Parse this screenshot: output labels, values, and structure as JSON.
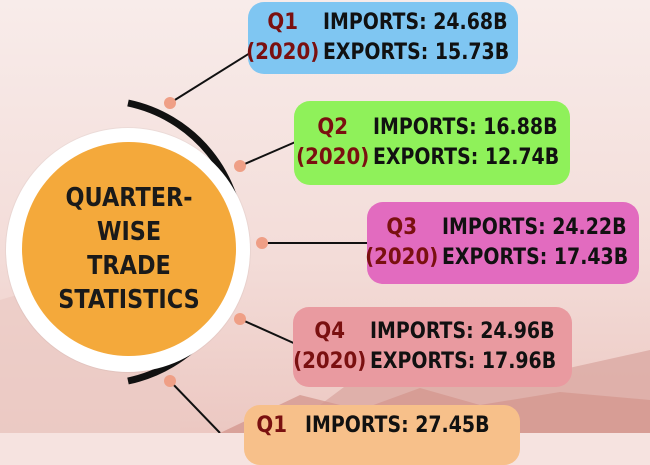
{
  "title": "QUARTER-WISE TRADE STATISTICS",
  "chart_data": {
    "type": "table",
    "title": "QUARTER-WISE TRADE STATISTICS",
    "columns": [
      "Quarter",
      "Year",
      "Imports",
      "Exports"
    ],
    "rows": [
      {
        "quarter": "Q1",
        "year": "(2020)",
        "imports": "IMPORTS: 24.68B",
        "exports": "EXPORTS: 15.73B",
        "imports_value": 24.68,
        "exports_value": 15.73,
        "color": "#7fc6f2"
      },
      {
        "quarter": "Q2",
        "year": "(2020)",
        "imports": "IMPORTS: 16.88B",
        "exports": "EXPORTS: 12.74B",
        "imports_value": 16.88,
        "exports_value": 12.74,
        "color": "#8ff15a"
      },
      {
        "quarter": "Q3",
        "year": "(2020)",
        "imports": "IMPORTS: 24.22B",
        "exports": "EXPORTS: 17.43B",
        "imports_value": 24.22,
        "exports_value": 17.43,
        "color": "#e26bbf"
      },
      {
        "quarter": "Q4",
        "year": "(2020)",
        "imports": "IMPORTS: 24.96B",
        "exports": "EXPORTS: 17.96B",
        "imports_value": 24.96,
        "exports_value": 17.96,
        "color": "#e99aa0"
      },
      {
        "quarter": "Q1",
        "year": "",
        "imports": "IMPORTS: 27.45B",
        "exports": "",
        "imports_value": 27.45,
        "exports_value": null,
        "color": "#f7c08a"
      }
    ]
  },
  "colors": {
    "hub": "#f4a93b",
    "quarter_text": "#7a1010",
    "connector": "#111111",
    "dot": "#ef9f86"
  }
}
